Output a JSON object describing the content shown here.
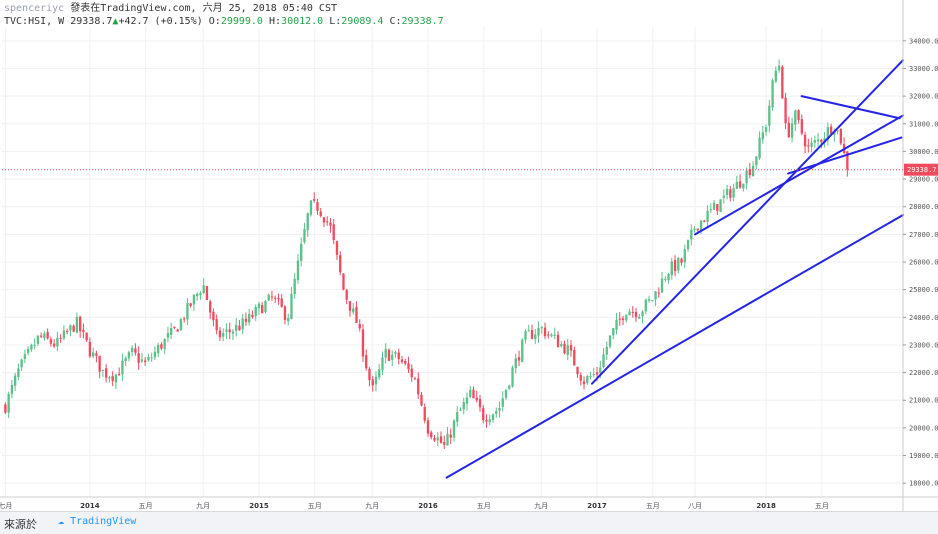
{
  "header": {
    "user": "spenceriyc",
    "published": "發表在TradingView.com, 六月 25, 2018 05:40 CST",
    "symbol": "TVC:HSI, W",
    "last": "29338.7",
    "change": "+42.7 (+0.15%)",
    "open_label": "O:",
    "open_value": "29999.0",
    "high_label": "H:",
    "high_value": "30012.0",
    "low_label": "L:",
    "low_value": "29089.4",
    "close_label": "C:",
    "close_value": "29338.7"
  },
  "footer": {
    "source_label": "來源於",
    "brand": "TradingView"
  },
  "colors": {
    "up": "#5cc08a",
    "down": "#ef4a5e",
    "trendline": "#2424e6",
    "price_line": "#ef4a5e"
  },
  "chart_data": {
    "type": "candlestick",
    "ylim": [
      17500,
      34500
    ],
    "y_ticks": [
      18000,
      19000,
      20000,
      21000,
      22000,
      23000,
      24000,
      25000,
      26000,
      27000,
      28000,
      29000,
      30000,
      31000,
      32000,
      33000,
      34000
    ],
    "y_tick_labels": [
      "18000.0",
      "19000.0",
      "20000.0",
      "21000.0",
      "22000.0",
      "23000.0",
      "24000.0",
      "25000.0",
      "26000.0",
      "27000.0",
      "28000.0",
      "29000.0",
      "30000.0",
      "31000.0",
      "32000.0",
      "33000.0",
      "34000.0"
    ],
    "xlim": [
      2013.48,
      2018.81
    ],
    "x_ticks": [
      {
        "t": 2013.5,
        "label": "七月",
        "year": false
      },
      {
        "t": 2014.0,
        "label": "2014",
        "year": true
      },
      {
        "t": 2014.33,
        "label": "五月",
        "year": false
      },
      {
        "t": 2014.67,
        "label": "九月",
        "year": false
      },
      {
        "t": 2015.0,
        "label": "2015",
        "year": true
      },
      {
        "t": 2015.33,
        "label": "五月",
        "year": false
      },
      {
        "t": 2015.67,
        "label": "九月",
        "year": false
      },
      {
        "t": 2016.0,
        "label": "2016",
        "year": true
      },
      {
        "t": 2016.33,
        "label": "五月",
        "year": false
      },
      {
        "t": 2016.67,
        "label": "九月",
        "year": false
      },
      {
        "t": 2017.0,
        "label": "2017",
        "year": true
      },
      {
        "t": 2017.33,
        "label": "五月",
        "year": false
      },
      {
        "t": 2017.58,
        "label": "八月",
        "year": false
      },
      {
        "t": 2018.0,
        "label": "2018",
        "year": true
      },
      {
        "t": 2018.33,
        "label": "五月",
        "year": false
      }
    ],
    "last_price": 29338.7,
    "last_price_label": "29338.7",
    "grid": true,
    "keypoints": [
      [
        2013.5,
        20800
      ],
      [
        2013.58,
        22100
      ],
      [
        2013.7,
        23300
      ],
      [
        2013.8,
        23000
      ],
      [
        2013.92,
        23800
      ],
      [
        2014.0,
        22800
      ],
      [
        2014.08,
        22000
      ],
      [
        2014.15,
        21900
      ],
      [
        2014.25,
        22700
      ],
      [
        2014.33,
        22300
      ],
      [
        2014.42,
        23000
      ],
      [
        2014.5,
        23500
      ],
      [
        2014.58,
        24300
      ],
      [
        2014.67,
        25200
      ],
      [
        2014.75,
        23300
      ],
      [
        2014.83,
        23500
      ],
      [
        2014.92,
        23800
      ],
      [
        2015.0,
        24300
      ],
      [
        2015.08,
        24700
      ],
      [
        2015.17,
        24000
      ],
      [
        2015.25,
        26500
      ],
      [
        2015.3,
        28000
      ],
      [
        2015.35,
        28000
      ],
      [
        2015.42,
        27300
      ],
      [
        2015.5,
        25000
      ],
      [
        2015.58,
        23800
      ],
      [
        2015.67,
        21300
      ],
      [
        2015.75,
        22700
      ],
      [
        2015.83,
        22500
      ],
      [
        2015.92,
        21800
      ],
      [
        2016.0,
        20000
      ],
      [
        2016.1,
        19300
      ],
      [
        2016.17,
        20400
      ],
      [
        2016.25,
        21200
      ],
      [
        2016.33,
        20400
      ],
      [
        2016.42,
        20700
      ],
      [
        2016.5,
        22100
      ],
      [
        2016.58,
        23300
      ],
      [
        2016.67,
        23600
      ],
      [
        2016.75,
        23200
      ],
      [
        2016.83,
        22800
      ],
      [
        2016.92,
        21700
      ],
      [
        2017.0,
        22000
      ],
      [
        2017.08,
        23300
      ],
      [
        2017.17,
        24300
      ],
      [
        2017.25,
        24200
      ],
      [
        2017.33,
        24700
      ],
      [
        2017.42,
        25700
      ],
      [
        2017.5,
        26000
      ],
      [
        2017.58,
        27300
      ],
      [
        2017.67,
        27800
      ],
      [
        2017.75,
        28300
      ],
      [
        2017.83,
        28800
      ],
      [
        2017.92,
        29500
      ],
      [
        2018.0,
        31000
      ],
      [
        2018.05,
        32800
      ],
      [
        2018.08,
        33200
      ],
      [
        2018.12,
        30500
      ],
      [
        2018.17,
        31300
      ],
      [
        2018.25,
        30100
      ],
      [
        2018.33,
        30500
      ],
      [
        2018.4,
        31000
      ],
      [
        2018.44,
        30500
      ],
      [
        2018.48,
        29338.7
      ]
    ],
    "trendlines": [
      {
        "from": [
          2016.11,
          18200
        ],
        "to": [
          2018.81,
          27700
        ]
      },
      {
        "from": [
          2016.97,
          21600
        ],
        "to": [
          2018.81,
          33300
        ]
      },
      {
        "from": [
          2017.58,
          27000
        ],
        "to": [
          2018.81,
          31300
        ]
      },
      {
        "from": [
          2018.13,
          29200
        ],
        "to": [
          2018.8,
          30500
        ]
      },
      {
        "from": [
          2018.21,
          32000
        ],
        "to": [
          2018.79,
          31200
        ]
      }
    ]
  }
}
